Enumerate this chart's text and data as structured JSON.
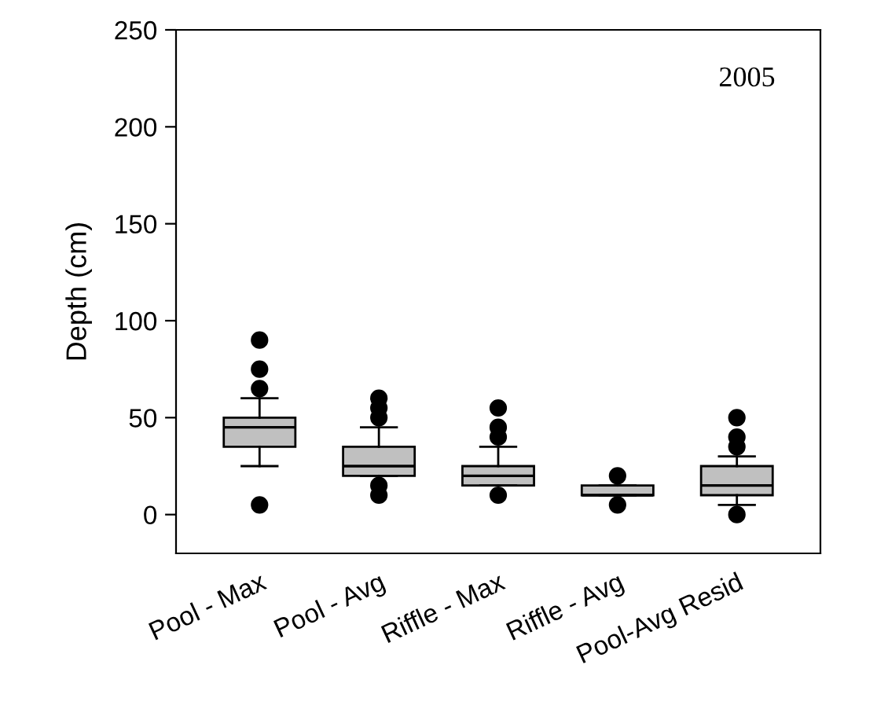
{
  "chart_data": {
    "type": "box",
    "ylabel": "Depth (cm)",
    "annotations": [
      "2005"
    ],
    "categories": [
      "Pool - Max",
      "Pool - Avg",
      "Riffle - Max",
      "Riffle - Avg",
      "Pool-Avg Resid"
    ],
    "boxes": [
      {
        "low": 25,
        "q1": 35,
        "median": 45,
        "q3": 50,
        "high": 60,
        "outliers": [
          65,
          75,
          90,
          5
        ]
      },
      {
        "low": 20,
        "q1": 20,
        "median": 25,
        "q3": 35,
        "high": 45,
        "outliers": [
          50,
          55,
          60,
          15,
          10
        ]
      },
      {
        "low": 15,
        "q1": 15,
        "median": 20,
        "q3": 25,
        "high": 35,
        "outliers": [
          40,
          45,
          55,
          10
        ]
      },
      {
        "low": 10,
        "q1": 10,
        "median": 10,
        "q3": 15,
        "high": 15,
        "outliers": [
          20,
          5
        ]
      },
      {
        "low": 5,
        "q1": 10,
        "median": 15,
        "q3": 25,
        "high": 30,
        "outliers": [
          35,
          40,
          50,
          0
        ]
      }
    ],
    "color": "#c0c0c0",
    "ylim": [
      -20,
      250
    ],
    "yticks": [
      0,
      50,
      100,
      150,
      200,
      250
    ],
    "grid": false
  }
}
